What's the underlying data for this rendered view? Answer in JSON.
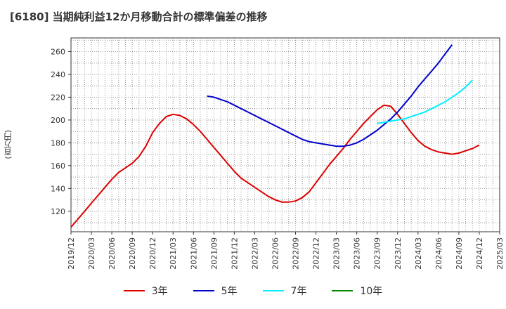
{
  "title": "[6180]  当期純利益12か月移動合計の標準偏差の推移",
  "y_unit": "(百万円)",
  "chart_data": {
    "type": "line",
    "title": "[6180]  当期純利益12か月移動合計の標準偏差の推移",
    "ylabel": "(百万円)",
    "xlabel": "",
    "ylim": [
      102,
      272
    ],
    "yticks": [
      120,
      140,
      160,
      180,
      200,
      220,
      240,
      260
    ],
    "x_ticks": [
      "2019/12",
      "2020/03",
      "2020/06",
      "2020/09",
      "2020/12",
      "2021/03",
      "2021/06",
      "2021/09",
      "2021/12",
      "2022/03",
      "2022/06",
      "2022/09",
      "2022/12",
      "2023/03",
      "2023/06",
      "2023/09",
      "2023/12",
      "2024/03",
      "2024/06",
      "2024/09",
      "2024/12",
      "2025/03"
    ],
    "grid": true,
    "legend_position": "bottom",
    "series": [
      {
        "name": "3年",
        "color": "#dd0000",
        "start": "2019/12",
        "values": [
          106,
          113,
          120,
          127,
          134,
          141,
          148,
          154,
          158,
          162,
          168,
          177,
          189,
          197,
          203,
          205,
          204,
          201,
          196,
          190,
          183,
          176,
          169,
          162,
          155,
          149,
          145,
          141,
          137,
          133,
          130,
          128,
          128,
          129,
          132,
          137,
          145,
          153,
          161,
          168,
          175,
          183,
          190,
          197,
          203,
          209,
          213,
          212,
          205,
          197,
          189,
          182,
          177,
          174,
          172,
          171,
          170,
          171,
          173,
          175,
          178
        ]
      },
      {
        "name": "5年",
        "color": "#0000cc",
        "start": "2021/08",
        "values": [
          221,
          220,
          218,
          216,
          213,
          210,
          207,
          204,
          201,
          198,
          195,
          192,
          189,
          186,
          183,
          181,
          180,
          179,
          178,
          177,
          177,
          178,
          180,
          183,
          187,
          191,
          196,
          201,
          207,
          214,
          221,
          229,
          236,
          243,
          250,
          258,
          266
        ]
      },
      {
        "name": "7年",
        "color": "#00eeff",
        "start": "2023/09",
        "values": [
          197,
          198,
          199,
          200,
          201,
          203,
          205,
          207,
          210,
          213,
          216,
          220,
          224,
          229,
          235
        ]
      },
      {
        "name": "10年",
        "color": "#008800",
        "start": "",
        "values": []
      }
    ]
  }
}
